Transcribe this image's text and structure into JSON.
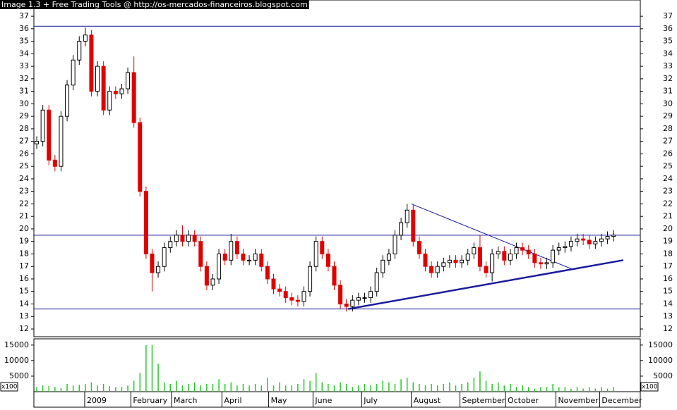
{
  "title": "Image 1.3 + Free Trading Tools @ http://os-mercados-financeiros.blogspot.com",
  "chart_data": [
    {
      "type": "candlestick",
      "x": [
        0,
        1,
        2,
        3,
        4,
        5,
        6,
        7,
        8,
        9,
        10,
        11,
        12,
        13,
        14,
        15,
        16,
        17,
        18,
        19,
        20,
        21,
        22,
        23,
        24,
        25,
        26,
        27,
        28,
        29,
        30,
        31,
        32,
        33,
        34,
        35,
        36,
        37,
        38,
        39,
        40,
        41,
        42,
        43,
        44,
        45,
        46,
        47,
        48,
        49,
        50,
        51,
        52,
        53,
        54,
        55,
        56,
        57,
        58,
        59,
        60,
        61,
        62,
        63,
        64,
        65,
        66,
        67,
        68,
        69,
        70,
        71,
        72,
        73,
        74,
        75,
        76,
        77,
        78,
        79,
        80,
        81,
        82,
        83,
        84,
        85,
        86,
        87,
        88,
        89,
        90,
        91,
        92,
        93,
        94,
        95
      ],
      "open": [
        26.8,
        27,
        29.5,
        25.5,
        25,
        29,
        31.5,
        33.5,
        35,
        35.5,
        31,
        33,
        29.5,
        31,
        30.8,
        31.2,
        32.5,
        28.5,
        23,
        18,
        16.5,
        17,
        18.5,
        19,
        19.5,
        19,
        19.5,
        19,
        17,
        15.5,
        16,
        18,
        17.5,
        19,
        18,
        17.5,
        17.5,
        18,
        17,
        16,
        15.2,
        15,
        14.5,
        14.3,
        14.2,
        15,
        17,
        19,
        18,
        17,
        15.5,
        14,
        13.8,
        14.3,
        14.5,
        14.5,
        15,
        16.5,
        17.5,
        18,
        19.5,
        20.5,
        21.5,
        19,
        18,
        17,
        16.5,
        17,
        17.3,
        17.5,
        17.3,
        17.5,
        18,
        18.5,
        17,
        16.5,
        18,
        18.2,
        17.5,
        18,
        18.5,
        18.3,
        18,
        17.3,
        17.2,
        17.3,
        18.3,
        18.5,
        18.6,
        19,
        19.2,
        19.1,
        18.8,
        19,
        19.2,
        19.4
      ],
      "high": [
        27.4,
        29.9,
        29.9,
        25.9,
        29.4,
        31.9,
        33.9,
        35.4,
        36.1,
        35.9,
        33.4,
        33.4,
        31.4,
        31.4,
        31.6,
        32.9,
        33.8,
        28.9,
        23.4,
        18.4,
        17.4,
        18.9,
        19.4,
        19.9,
        20.3,
        19.9,
        19.9,
        19.4,
        17.4,
        16.4,
        18.4,
        18.4,
        19.6,
        19.4,
        18.4,
        17.9,
        18.4,
        18.4,
        17.4,
        16.4,
        15.6,
        15.4,
        14.9,
        14.7,
        15.4,
        17.4,
        19.4,
        19.4,
        18.4,
        17.4,
        15.9,
        14.4,
        14.7,
        14.9,
        14.9,
        15.4,
        16.9,
        17.9,
        18.4,
        19.9,
        20.9,
        22,
        21.9,
        19.4,
        18.4,
        17.4,
        17.4,
        17.7,
        17.9,
        17.9,
        17.9,
        18.4,
        18.9,
        19.5,
        17.4,
        18.4,
        18.6,
        18.6,
        18.4,
        18.9,
        18.9,
        18.7,
        18.4,
        17.7,
        17.7,
        18.7,
        18.9,
        19,
        19.4,
        19.6,
        19.6,
        19.5,
        19.4,
        19.6,
        19.8,
        19.9
      ],
      "low": [
        26.4,
        26.6,
        25.1,
        24.6,
        24.6,
        28.6,
        31.1,
        33.1,
        34.6,
        30.6,
        30.6,
        29.1,
        29.1,
        30.4,
        30.4,
        30.8,
        28.1,
        22.6,
        17.6,
        15,
        16.1,
        16.6,
        18.1,
        18.6,
        18.6,
        18.6,
        18.6,
        16.6,
        15.1,
        15.1,
        15.6,
        17.1,
        17.1,
        17.6,
        17.1,
        17.1,
        17.1,
        16.6,
        15.6,
        14.8,
        14.6,
        14.1,
        13.9,
        13.8,
        13.8,
        14.6,
        16.6,
        17.6,
        16.6,
        15.1,
        13.6,
        13.4,
        13.4,
        13.9,
        14.1,
        14.1,
        14.6,
        16.1,
        17.1,
        17.6,
        19.1,
        20.1,
        18.6,
        17.6,
        16.6,
        16.1,
        16.1,
        16.6,
        16.9,
        16.9,
        16.9,
        17.1,
        17.6,
        16.6,
        16.1,
        15.8,
        17.6,
        17.1,
        17.1,
        17.6,
        17.9,
        17.6,
        16.9,
        16.8,
        16.8,
        16.9,
        17.9,
        18.1,
        18.2,
        18.6,
        18.7,
        18.4,
        18.4,
        18.6,
        18.8,
        19
      ],
      "close": [
        27,
        29.5,
        25.5,
        25,
        29,
        31.5,
        33.5,
        35,
        35.5,
        31,
        33,
        29.5,
        31,
        30.8,
        31.2,
        32.5,
        28.5,
        23,
        18,
        16.5,
        17,
        18.5,
        19,
        19.5,
        19,
        19.5,
        19,
        17,
        15.5,
        16,
        18,
        17.5,
        19,
        18,
        17.5,
        17.5,
        18,
        17,
        16,
        15.2,
        15,
        14.5,
        14.3,
        14.2,
        15,
        17,
        19,
        18,
        17,
        15.5,
        14,
        13.8,
        14.3,
        14.5,
        14.5,
        15,
        16.5,
        17.5,
        18,
        19.5,
        20.5,
        21.5,
        19,
        18,
        17,
        16.5,
        17,
        17.3,
        17.5,
        17.3,
        17.5,
        18,
        18.5,
        17,
        16.5,
        18,
        18.2,
        17.5,
        18,
        18.5,
        18.3,
        18,
        17.3,
        17.2,
        17.3,
        18.3,
        18.5,
        18.6,
        19,
        19.2,
        19.1,
        18.8,
        19,
        19.2,
        19.4,
        19.5
      ],
      "up_color": "#000000",
      "down_color": "#e00000",
      "line_color": "#1a1aa0",
      "xlim": [
        -0.47,
        99.4
      ],
      "xticks": [
        {
          "value": 7.9,
          "label": "2009"
        },
        {
          "value": 15.5,
          "label": "February"
        },
        {
          "value": 22.2,
          "label": "March"
        },
        {
          "value": 30.5,
          "label": "April"
        },
        {
          "value": 38.2,
          "label": "May"
        },
        {
          "value": 45.5,
          "label": "June"
        },
        {
          "value": 53.5,
          "label": "July"
        },
        {
          "value": 61.7,
          "label": "August"
        },
        {
          "value": 69.7,
          "label": "September"
        },
        {
          "value": 77.2,
          "label": "October"
        },
        {
          "value": 85.5,
          "label": "November"
        },
        {
          "value": 92.7,
          "label": "December"
        }
      ],
      "ylim": [
        11.38,
        38.3
      ],
      "yticks": [
        12,
        13,
        14,
        15,
        16,
        17,
        18,
        19,
        20,
        21,
        22,
        23,
        24,
        25,
        26,
        27,
        28,
        29,
        30,
        31,
        32,
        33,
        34,
        35,
        36,
        37
      ],
      "hlines": [
        36.2,
        19.5,
        13.6
      ],
      "trendlines": [
        {
          "x": [
            51.3,
            96.6
          ],
          "y": [
            13.6,
            17.5
          ]
        },
        {
          "x": [
            61.7,
            88.1
          ],
          "y": [
            22,
            16.8
          ]
        }
      ]
    },
    {
      "type": "bar",
      "x": [
        0,
        1,
        2,
        3,
        4,
        5,
        6,
        7,
        8,
        9,
        10,
        11,
        12,
        13,
        14,
        15,
        16,
        17,
        18,
        19,
        20,
        21,
        22,
        23,
        24,
        25,
        26,
        27,
        28,
        29,
        30,
        31,
        32,
        33,
        34,
        35,
        36,
        37,
        38,
        39,
        40,
        41,
        42,
        43,
        44,
        45,
        46,
        47,
        48,
        49,
        50,
        51,
        52,
        53,
        54,
        55,
        56,
        57,
        58,
        59,
        60,
        61,
        62,
        63,
        64,
        65,
        66,
        67,
        68,
        69,
        70,
        71,
        72,
        73,
        74,
        75,
        76,
        77,
        78,
        79,
        80,
        81,
        82,
        83,
        84,
        85,
        86,
        87,
        88,
        89,
        90,
        91,
        92,
        93,
        94,
        95
      ],
      "values": [
        1500,
        2000,
        1800,
        1500,
        1200,
        2500,
        2000,
        2200,
        2500,
        3000,
        2000,
        2500,
        1800,
        1500,
        1500,
        2000,
        3500,
        6000,
        15000,
        15000,
        9000,
        3000,
        2500,
        3500,
        2000,
        2500,
        3000,
        2000,
        2500,
        2500,
        4000,
        2500,
        3000,
        2000,
        2500,
        2000,
        2500,
        2000,
        4500,
        2000,
        3000,
        2000,
        2000,
        2500,
        4000,
        3500,
        6000,
        3000,
        2500,
        2000,
        3000,
        2500,
        1500,
        2000,
        2500,
        2000,
        2500,
        3500,
        3000,
        2500,
        4000,
        4500,
        3000,
        2500,
        2000,
        2500,
        2000,
        2500,
        3000,
        2000,
        2500,
        3000,
        4500,
        6500,
        3500,
        2500,
        3000,
        2000,
        2500,
        1500,
        2000,
        1500,
        1000,
        1500,
        1500,
        2500,
        1500,
        1500,
        1000,
        1500,
        1000,
        1500,
        1000,
        1500,
        1000,
        1500
      ],
      "color": "#22cc22",
      "xlim": [
        -0.47,
        99.4
      ],
      "ylim": [
        0,
        17000
      ],
      "yticks": [
        5000,
        10000,
        15000
      ],
      "unit_label": "x100"
    }
  ]
}
